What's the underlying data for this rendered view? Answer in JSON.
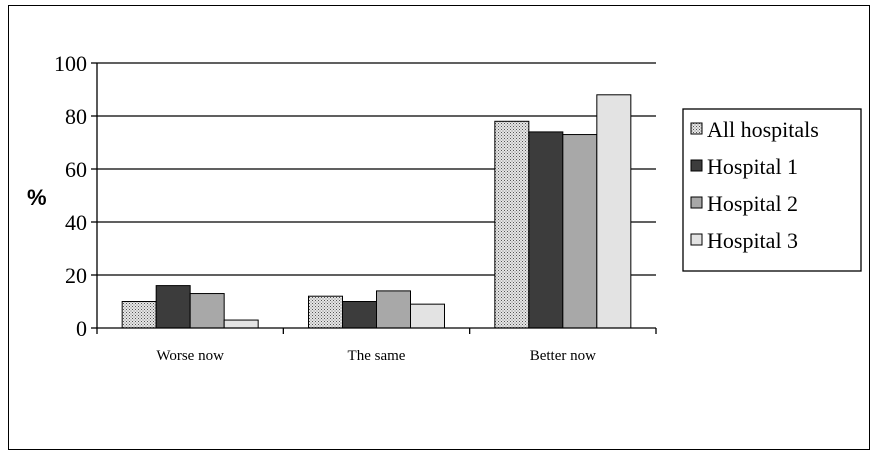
{
  "chart_data": {
    "type": "bar",
    "title": "",
    "xlabel": "",
    "ylabel": "%",
    "ylim": [
      0,
      100
    ],
    "yticks": [
      0,
      20,
      40,
      60,
      80,
      100
    ],
    "grid": true,
    "legend_position": "right",
    "categories": [
      "Worse now",
      "The same",
      "Better now"
    ],
    "series": [
      {
        "name": "All hospitals",
        "values": [
          10,
          12,
          78
        ],
        "color": "#c8c8c8",
        "pattern": "dots"
      },
      {
        "name": "Hospital 1",
        "values": [
          16,
          10,
          74
        ],
        "color": "#3c3c3c",
        "pattern": "solid"
      },
      {
        "name": "Hospital 2",
        "values": [
          13,
          14,
          73
        ],
        "color": "#a8a8a8",
        "pattern": "solid"
      },
      {
        "name": "Hospital 3",
        "values": [
          3,
          9,
          88
        ],
        "color": "#e3e3e3",
        "pattern": "solid"
      }
    ]
  }
}
